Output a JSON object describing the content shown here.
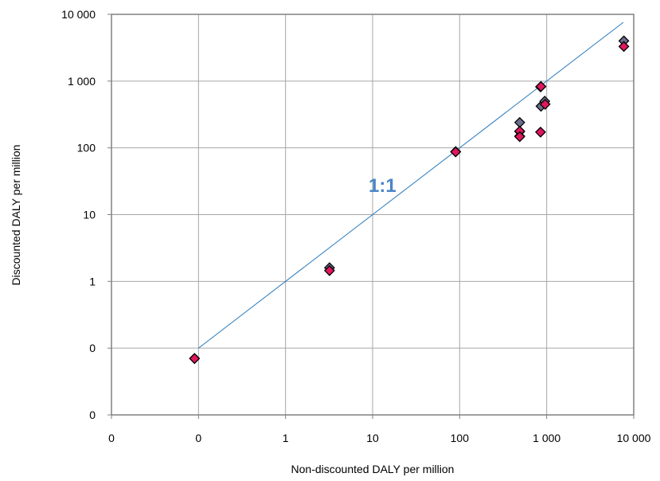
{
  "chart_data": {
    "type": "scatter",
    "xlabel": "Non-discounted DALY per million",
    "ylabel": "Discounted DALY per million",
    "x_scale": "log",
    "y_scale": "log",
    "xlim": [
      0.01,
      10000
    ],
    "ylim": [
      0.01,
      10000
    ],
    "x_tick_values": [
      0.01,
      0.1,
      1,
      10,
      100,
      1000,
      10000
    ],
    "x_tick_labels": [
      "0",
      "0",
      "1",
      "10",
      "100",
      "1 000",
      "10 000"
    ],
    "y_tick_values": [
      0.01,
      0.1,
      1,
      10,
      100,
      1000,
      10000
    ],
    "y_tick_labels": [
      "0",
      "0",
      "1",
      "10",
      "100",
      "1 000",
      "10 000"
    ],
    "grid": true,
    "reference_line": {
      "label": "1:1",
      "slope": 1,
      "from": 0.1,
      "to": 7600,
      "color": "#2b7bbd",
      "label_color": "#4a86c8",
      "label_at": [
        9,
        22
      ]
    },
    "series": [
      {
        "color": "#6b6f8e",
        "points": [
          [
            0.09,
            0.07
          ],
          [
            3.2,
            1.6
          ],
          [
            90,
            88
          ],
          [
            490,
            240
          ],
          [
            490,
            175
          ],
          [
            490,
            150
          ],
          [
            850,
            820
          ],
          [
            860,
            420
          ],
          [
            950,
            500
          ],
          [
            7700,
            4000
          ]
        ]
      },
      {
        "color": "#e0175e",
        "points": [
          [
            0.09,
            0.07
          ],
          [
            3.2,
            1.45
          ],
          [
            90,
            87
          ],
          [
            490,
            178
          ],
          [
            490,
            147
          ],
          [
            850,
            172
          ],
          [
            860,
            830
          ],
          [
            960,
            450
          ],
          [
            7700,
            3300
          ]
        ]
      }
    ]
  }
}
